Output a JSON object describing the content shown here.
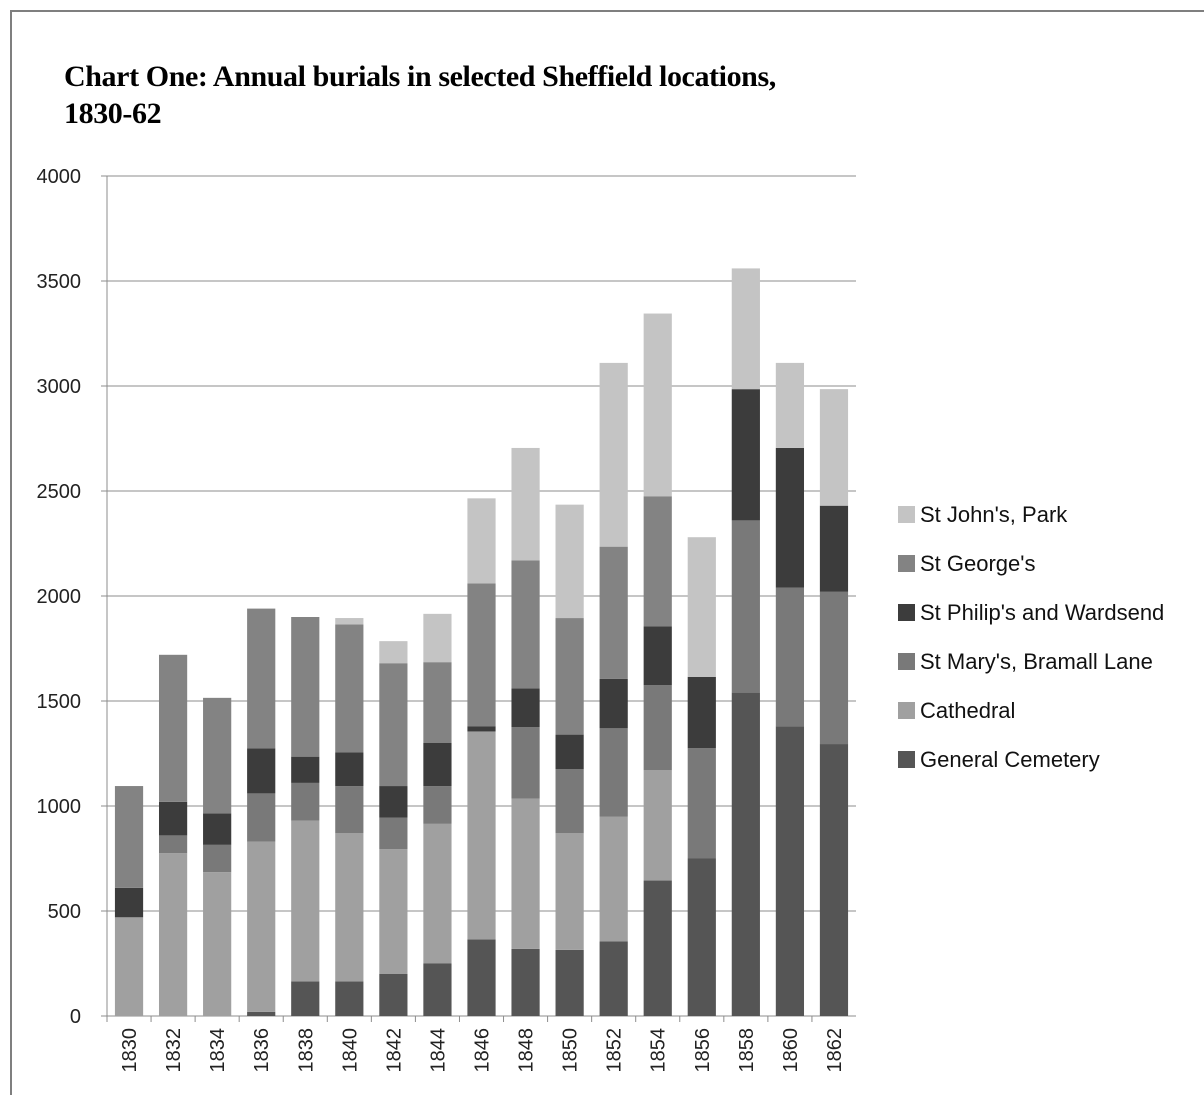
{
  "chart_data": {
    "type": "bar",
    "stacked": true,
    "title": "Chart One: Annual burials in selected Sheffield locations, 1830-62",
    "title_lines": [
      "Chart One: Annual burials in selected Sheffield locations,",
      "1830-62"
    ],
    "xlabel": "",
    "ylabel": "",
    "ylim": [
      0,
      4000
    ],
    "yticks": [
      "0",
      "500",
      "1000",
      "1500",
      "2000",
      "2500",
      "3000",
      "3500",
      "4000"
    ],
    "grid": "horizontal",
    "legend_position": "right",
    "categories": [
      "1830",
      "1832",
      "1834",
      "1836",
      "1838",
      "1840",
      "1842",
      "1844",
      "1846",
      "1848",
      "1850",
      "1852",
      "1854",
      "1856",
      "1858",
      "1860",
      "1862"
    ],
    "series": [
      {
        "name": "General Cemetery",
        "color": "#555555",
        "values": [
          0,
          0,
          0,
          20,
          165,
          165,
          200,
          250,
          365,
          320,
          315,
          355,
          645,
          750,
          1540,
          1380,
          1295
        ]
      },
      {
        "name": "Cathedral",
        "color": "#a0a0a0",
        "values": [
          470,
          775,
          685,
          810,
          765,
          705,
          595,
          665,
          990,
          715,
          555,
          595,
          525,
          0,
          0,
          0,
          0
        ]
      },
      {
        "name": "St Mary's, Bramall Lane",
        "color": "#797979",
        "values": [
          0,
          85,
          130,
          230,
          180,
          225,
          150,
          180,
          0,
          340,
          305,
          420,
          405,
          525,
          820,
          660,
          725
        ]
      },
      {
        "name": "St Philip's and Wardsend",
        "color": "#3c3c3c",
        "values": [
          140,
          160,
          150,
          215,
          125,
          160,
          150,
          205,
          25,
          185,
          165,
          235,
          280,
          340,
          625,
          665,
          410
        ]
      },
      {
        "name": "St George's",
        "color": "#838383",
        "values": [
          485,
          700,
          550,
          665,
          665,
          610,
          585,
          385,
          680,
          610,
          555,
          630,
          620,
          0,
          0,
          0,
          0
        ]
      },
      {
        "name": "St John's, Park",
        "color": "#c4c4c4",
        "values": [
          0,
          0,
          0,
          0,
          0,
          30,
          105,
          230,
          405,
          535,
          540,
          875,
          870,
          665,
          575,
          405,
          555
        ]
      }
    ]
  }
}
